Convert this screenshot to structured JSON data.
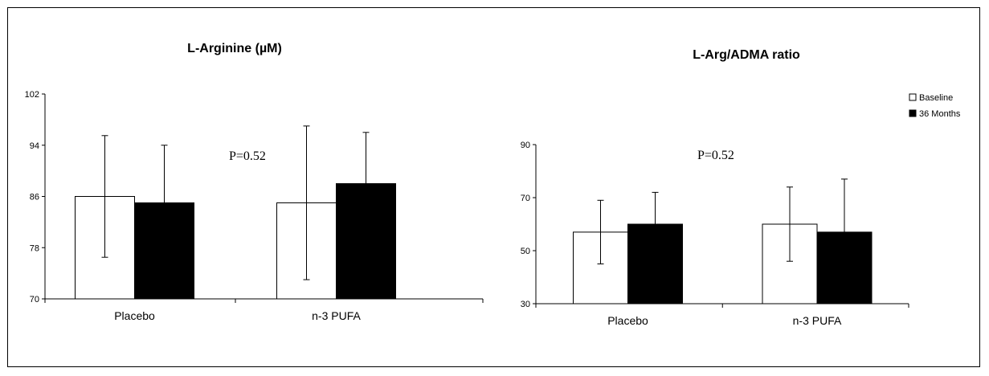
{
  "chart_data": [
    {
      "type": "bar",
      "title": "L-Arginine (µM)",
      "categories": [
        "Placebo",
        "n-3 PUFA"
      ],
      "ylim": [
        70,
        102
      ],
      "yticks": [
        70,
        78,
        86,
        94,
        102
      ],
      "series": [
        {
          "name": "Baseline",
          "values": [
            86,
            85
          ],
          "errors": [
            9.5,
            12
          ]
        },
        {
          "name": "36 Months",
          "values": [
            85,
            88
          ],
          "errors": [
            9,
            8
          ]
        }
      ],
      "annotation": "P=0.52",
      "grid": false
    },
    {
      "type": "bar",
      "title": "L-Arg/ADMA ratio",
      "categories": [
        "Placebo",
        "n-3 PUFA"
      ],
      "ylim": [
        30,
        90
      ],
      "yticks": [
        30,
        50,
        70,
        90
      ],
      "series": [
        {
          "name": "Baseline",
          "values": [
            57,
            60
          ],
          "errors": [
            12,
            14
          ]
        },
        {
          "name": "36 Months",
          "values": [
            60,
            57
          ],
          "errors": [
            12,
            20
          ]
        }
      ],
      "annotation": "P=0.52",
      "grid": false
    }
  ],
  "legend": {
    "placement": "top-right",
    "items": [
      {
        "label": "Baseline",
        "color": "#ffffff"
      },
      {
        "label": "36 Months",
        "color": "#000000"
      }
    ]
  }
}
